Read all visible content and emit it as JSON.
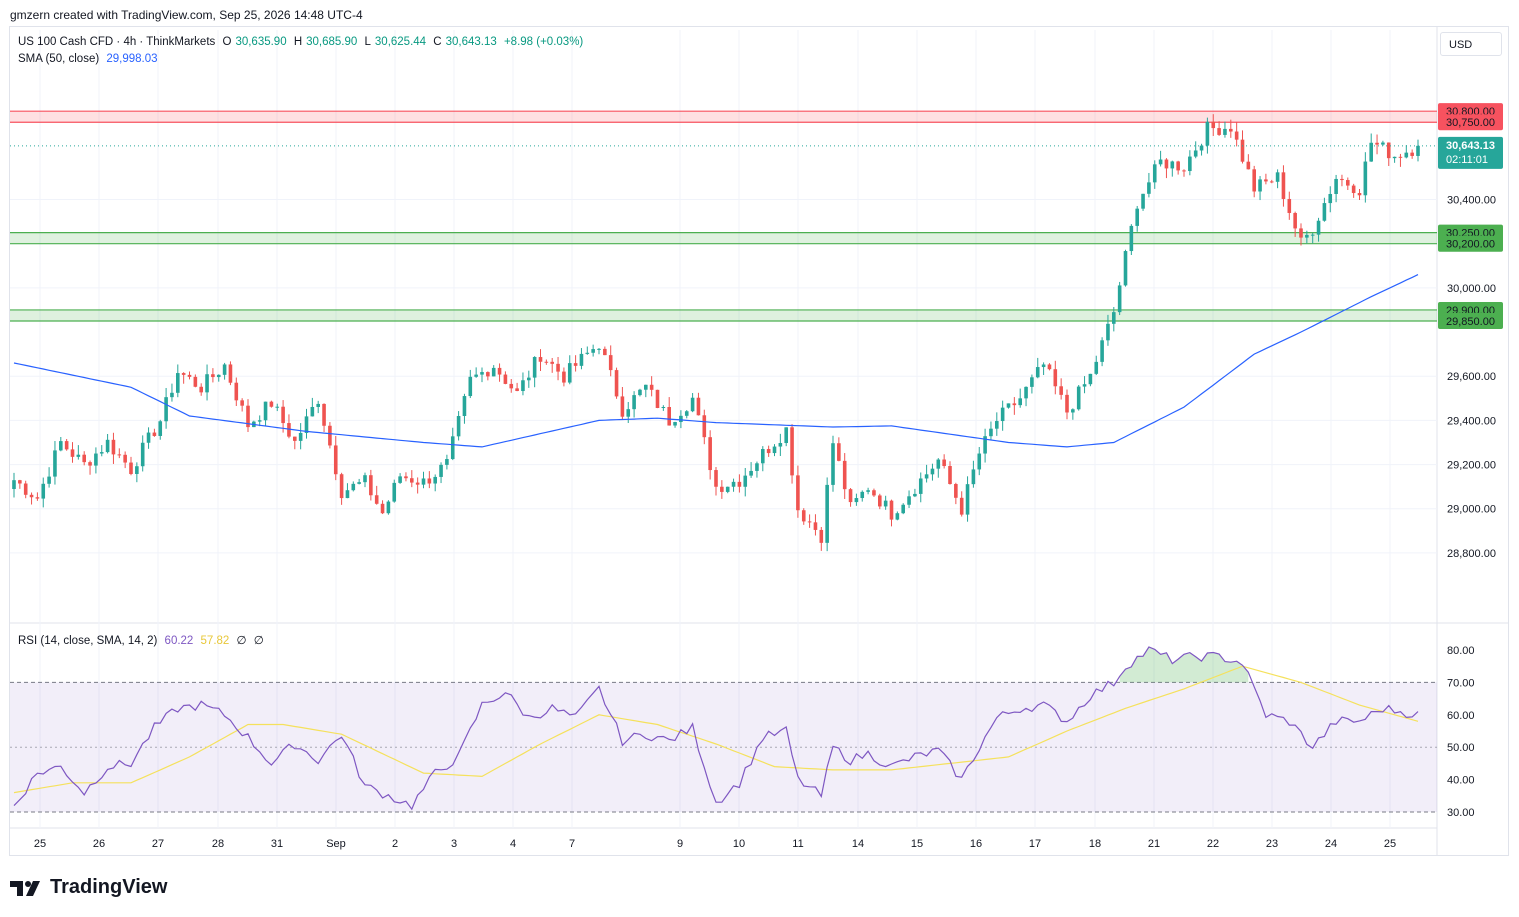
{
  "header": {
    "created_by": "gmzern created with TradingView.com, Sep 25, 2026 14:48 UTC-4",
    "symbol_line": "US 100 Cash CFD · 4h · ThinkMarkets",
    "ohlc": {
      "o_label": "O",
      "o": "30,635.90",
      "h_label": "H",
      "h": "30,685.90",
      "l_label": "L",
      "l": "30,625.44",
      "c_label": "C",
      "c": "30,643.13",
      "change": "+8.98 (+0.03%)"
    },
    "sma_label": "SMA (50, close)",
    "sma_value": "29,998.03",
    "rsi_label": "RSI (14, close, SMA, 14, 2)",
    "rsi_value": "60.22",
    "rsi_ma_value": "57.82",
    "rsi_extra1": "∅",
    "rsi_extra2": "∅",
    "currency": "USD"
  },
  "branding": {
    "logo_text": "TradingView"
  },
  "colors": {
    "up": "#26a69a",
    "down": "#ef5350",
    "sma": "#2962ff",
    "rsi": "#7e57c2",
    "rsi_ma": "#f5e15c",
    "resistance": "#f7525f",
    "support": "#4caf50"
  },
  "chart_data": [
    {
      "type": "candlestick",
      "title": "US 100 Cash CFD · 4h · ThinkMarkets",
      "x_tick_labels": [
        "25",
        "26",
        "27",
        "28",
        "31",
        "Sep",
        "2",
        "3",
        "4",
        "7",
        "9",
        "10",
        "11",
        "14",
        "15",
        "16",
        "17",
        "18",
        "21",
        "22",
        "23",
        "24",
        "25"
      ],
      "y_ticks": [
        28800,
        29000,
        29200,
        29400,
        29600,
        30000,
        30400
      ],
      "y_tick_labels": [
        "28,800.00",
        "29,000.00",
        "29,200.00",
        "29,400.00",
        "29,600.00",
        "30,000.00",
        "30,400.00"
      ],
      "ylim": [
        28550,
        31000
      ],
      "last_price": {
        "value": 30643.13,
        "label": "30,643.13",
        "countdown": "02:11:01"
      },
      "zones": [
        {
          "kind": "resistance",
          "low": 30750,
          "high": 30800,
          "labels": [
            "30,800.00",
            "30,750.00"
          ]
        },
        {
          "kind": "support",
          "low": 30200,
          "high": 30250,
          "labels": [
            "30,250.00",
            "30,200.00"
          ]
        },
        {
          "kind": "support",
          "low": 29850,
          "high": 29900,
          "labels": [
            "29,900.00",
            "29,850.00"
          ]
        }
      ],
      "anchors": [
        [
          0,
          29130
        ],
        [
          4,
          29050
        ],
        [
          8,
          29300
        ],
        [
          12,
          29200
        ],
        [
          16,
          29300
        ],
        [
          20,
          29180
        ],
        [
          25,
          29400
        ],
        [
          28,
          29620
        ],
        [
          32,
          29550
        ],
        [
          36,
          29650
        ],
        [
          40,
          29380
        ],
        [
          44,
          29480
        ],
        [
          48,
          29300
        ],
        [
          52,
          29500
        ],
        [
          56,
          29080
        ],
        [
          60,
          29120
        ],
        [
          63,
          28980
        ],
        [
          66,
          29150
        ],
        [
          70,
          29120
        ],
        [
          74,
          29200
        ],
        [
          78,
          29580
        ],
        [
          82,
          29650
        ],
        [
          86,
          29520
        ],
        [
          90,
          29700
        ],
        [
          94,
          29600
        ],
        [
          100,
          29750
        ],
        [
          104,
          29450
        ],
        [
          108,
          29550
        ],
        [
          112,
          29400
        ],
        [
          116,
          29500
        ],
        [
          120,
          29100
        ],
        [
          124,
          29130
        ],
        [
          128,
          29250
        ],
        [
          132,
          29360
        ],
        [
          134,
          29000
        ],
        [
          138,
          28880
        ],
        [
          140,
          29300
        ],
        [
          143,
          29000
        ],
        [
          146,
          29100
        ],
        [
          150,
          28980
        ],
        [
          154,
          29100
        ],
        [
          158,
          29220
        ],
        [
          162,
          29000
        ],
        [
          165,
          29250
        ],
        [
          168,
          29400
        ],
        [
          172,
          29500
        ],
        [
          176,
          29650
        ],
        [
          180,
          29440
        ],
        [
          184,
          29600
        ],
        [
          188,
          29890
        ],
        [
          192,
          30390
        ],
        [
          196,
          30570
        ],
        [
          200,
          30550
        ],
        [
          204,
          30720
        ],
        [
          208,
          30730
        ],
        [
          212,
          30450
        ],
        [
          216,
          30500
        ],
        [
          220,
          30200
        ],
        [
          222,
          30270
        ],
        [
          226,
          30500
        ],
        [
          230,
          30450
        ],
        [
          232,
          30660
        ],
        [
          236,
          30600
        ],
        [
          240,
          30640
        ]
      ],
      "sma": {
        "name": "SMA (50, close)",
        "anchors": [
          [
            0,
            29660
          ],
          [
            20,
            29550
          ],
          [
            30,
            29420
          ],
          [
            50,
            29350
          ],
          [
            70,
            29300
          ],
          [
            80,
            29280
          ],
          [
            90,
            29340
          ],
          [
            100,
            29400
          ],
          [
            110,
            29410
          ],
          [
            120,
            29390
          ],
          [
            140,
            29370
          ],
          [
            150,
            29375
          ],
          [
            170,
            29300
          ],
          [
            180,
            29280
          ],
          [
            188,
            29300
          ],
          [
            200,
            29460
          ],
          [
            212,
            29700
          ],
          [
            220,
            29800
          ],
          [
            232,
            29960
          ],
          [
            240,
            30060
          ]
        ]
      }
    },
    {
      "type": "line",
      "title": "RSI (14, close, SMA, 14, 2)",
      "y_ticks": [
        30,
        40,
        50,
        60,
        70,
        80
      ],
      "y_tick_labels": [
        "30.00",
        "40.00",
        "50.00",
        "60.00",
        "70.00",
        "80.00"
      ],
      "ylim": [
        25,
        85
      ],
      "band": [
        30,
        70
      ],
      "series": [
        {
          "name": "RSI",
          "anchors": [
            [
              0,
              32
            ],
            [
              4,
              42
            ],
            [
              8,
              44
            ],
            [
              12,
              36
            ],
            [
              16,
              44
            ],
            [
              20,
              45
            ],
            [
              24,
              56
            ],
            [
              28,
              62
            ],
            [
              32,
              63
            ],
            [
              36,
              60
            ],
            [
              40,
              53
            ],
            [
              44,
              45
            ],
            [
              48,
              51
            ],
            [
              52,
              46
            ],
            [
              56,
              54
            ],
            [
              60,
              38
            ],
            [
              64,
              35
            ],
            [
              68,
              32
            ],
            [
              72,
              42
            ],
            [
              76,
              47
            ],
            [
              80,
              63
            ],
            [
              84,
              67
            ],
            [
              88,
              59
            ],
            [
              92,
              62
            ],
            [
              96,
              59
            ],
            [
              100,
              68
            ],
            [
              104,
              52
            ],
            [
              108,
              54
            ],
            [
              112,
              52
            ],
            [
              116,
              56
            ],
            [
              120,
              33
            ],
            [
              124,
              39
            ],
            [
              128,
              53
            ],
            [
              132,
              55
            ],
            [
              134,
              40
            ],
            [
              138,
              35
            ],
            [
              140,
              50
            ],
            [
              143,
              46
            ],
            [
              146,
              48
            ],
            [
              150,
              44
            ],
            [
              154,
              47
            ],
            [
              158,
              49
            ],
            [
              162,
              40
            ],
            [
              165,
              50
            ],
            [
              168,
              59
            ],
            [
              172,
              62
            ],
            [
              176,
              63
            ],
            [
              180,
              58
            ],
            [
              184,
              66
            ],
            [
              188,
              70
            ],
            [
              190,
              75
            ],
            [
              194,
              80
            ],
            [
              198,
              77
            ],
            [
              202,
              78
            ],
            [
              206,
              78
            ],
            [
              210,
              76
            ],
            [
              214,
              60
            ],
            [
              218,
              58
            ],
            [
              222,
              50
            ],
            [
              226,
              58
            ],
            [
              230,
              58
            ],
            [
              234,
              62
            ],
            [
              240,
              60
            ]
          ]
        },
        {
          "name": "SMA",
          "anchors": [
            [
              0,
              36
            ],
            [
              10,
              39
            ],
            [
              20,
              39
            ],
            [
              30,
              47
            ],
            [
              40,
              57
            ],
            [
              46,
              57
            ],
            [
              56,
              54
            ],
            [
              70,
              42
            ],
            [
              80,
              41
            ],
            [
              90,
              51
            ],
            [
              100,
              60
            ],
            [
              110,
              57
            ],
            [
              120,
              51
            ],
            [
              130,
              44
            ],
            [
              140,
              43
            ],
            [
              150,
              43
            ],
            [
              160,
              45
            ],
            [
              170,
              47
            ],
            [
              180,
              55
            ],
            [
              190,
              62
            ],
            [
              200,
              68
            ],
            [
              210,
              75
            ],
            [
              220,
              70
            ],
            [
              230,
              63
            ],
            [
              240,
              58
            ]
          ]
        }
      ]
    }
  ]
}
